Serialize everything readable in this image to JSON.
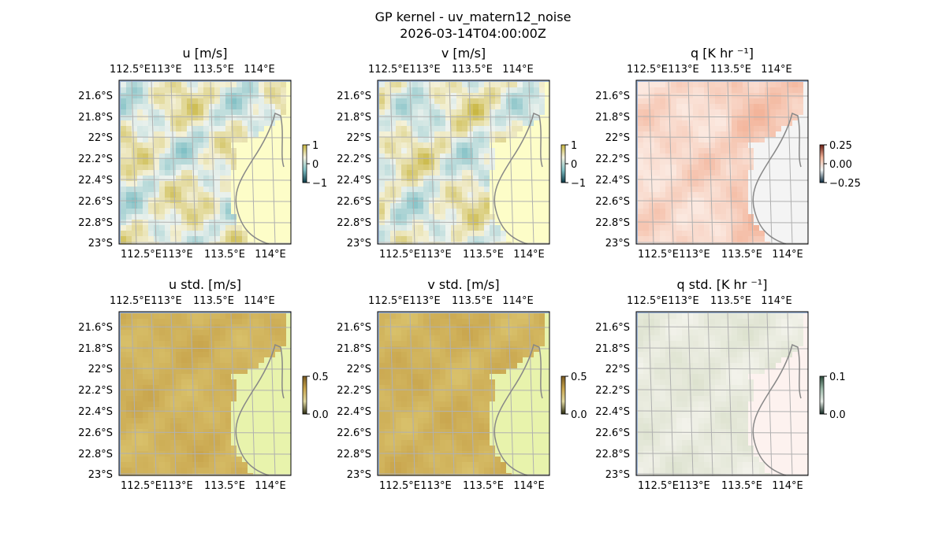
{
  "figure": {
    "title_line1": "GP kernel - uv_matern12_noise",
    "title_line2": "2026-03-14T04:00:00Z"
  },
  "axes": {
    "lon_ticks": [
      "112.5°E",
      "113°E",
      "113.5°E",
      "114°E"
    ],
    "lat_ticks": [
      "21.6°S",
      "21.8°S",
      "22°S",
      "22.2°S",
      "22.4°S",
      "22.6°S",
      "22.8°S",
      "23°S"
    ]
  },
  "panels": [
    {
      "id": "u",
      "title": "u [m/s]",
      "cbar_ticks": [
        "1",
        "0",
        "−1"
      ],
      "palette": "diverging-teal-olive"
    },
    {
      "id": "v",
      "title": "v [m/s]",
      "cbar_ticks": [
        "1",
        "0",
        "−1"
      ],
      "palette": "diverging-teal-olive"
    },
    {
      "id": "q",
      "title": "q [K hr ⁻¹]",
      "cbar_ticks": [
        "0.25",
        "0.00",
        "−0.25"
      ],
      "palette": "diverging-teal-red"
    },
    {
      "id": "u_std",
      "title": "u std. [m/s]",
      "cbar_ticks": [
        "0.5",
        "0.0"
      ],
      "palette": "sequential-olive"
    },
    {
      "id": "v_std",
      "title": "v std. [m/s]",
      "cbar_ticks": [
        "0.5",
        "0.0"
      ],
      "palette": "sequential-olive"
    },
    {
      "id": "q_std",
      "title": "q std. [K hr ⁻¹]",
      "cbar_ticks": [
        "0.1",
        "0.0"
      ],
      "palette": "sequential-pale"
    }
  ],
  "colors": {
    "ocean_edge": "#9db4d6",
    "land_fill": "#fdfdc8",
    "coastline": "#888888",
    "gridline": "#b0b0b0",
    "olive": "#c7b43c",
    "teal": "#7fbfc4",
    "salmon": "#f3b49a",
    "std_olive": "#c9a64e",
    "std_land": "#e8f3ac",
    "pale_land": "#fdf2ef"
  }
}
